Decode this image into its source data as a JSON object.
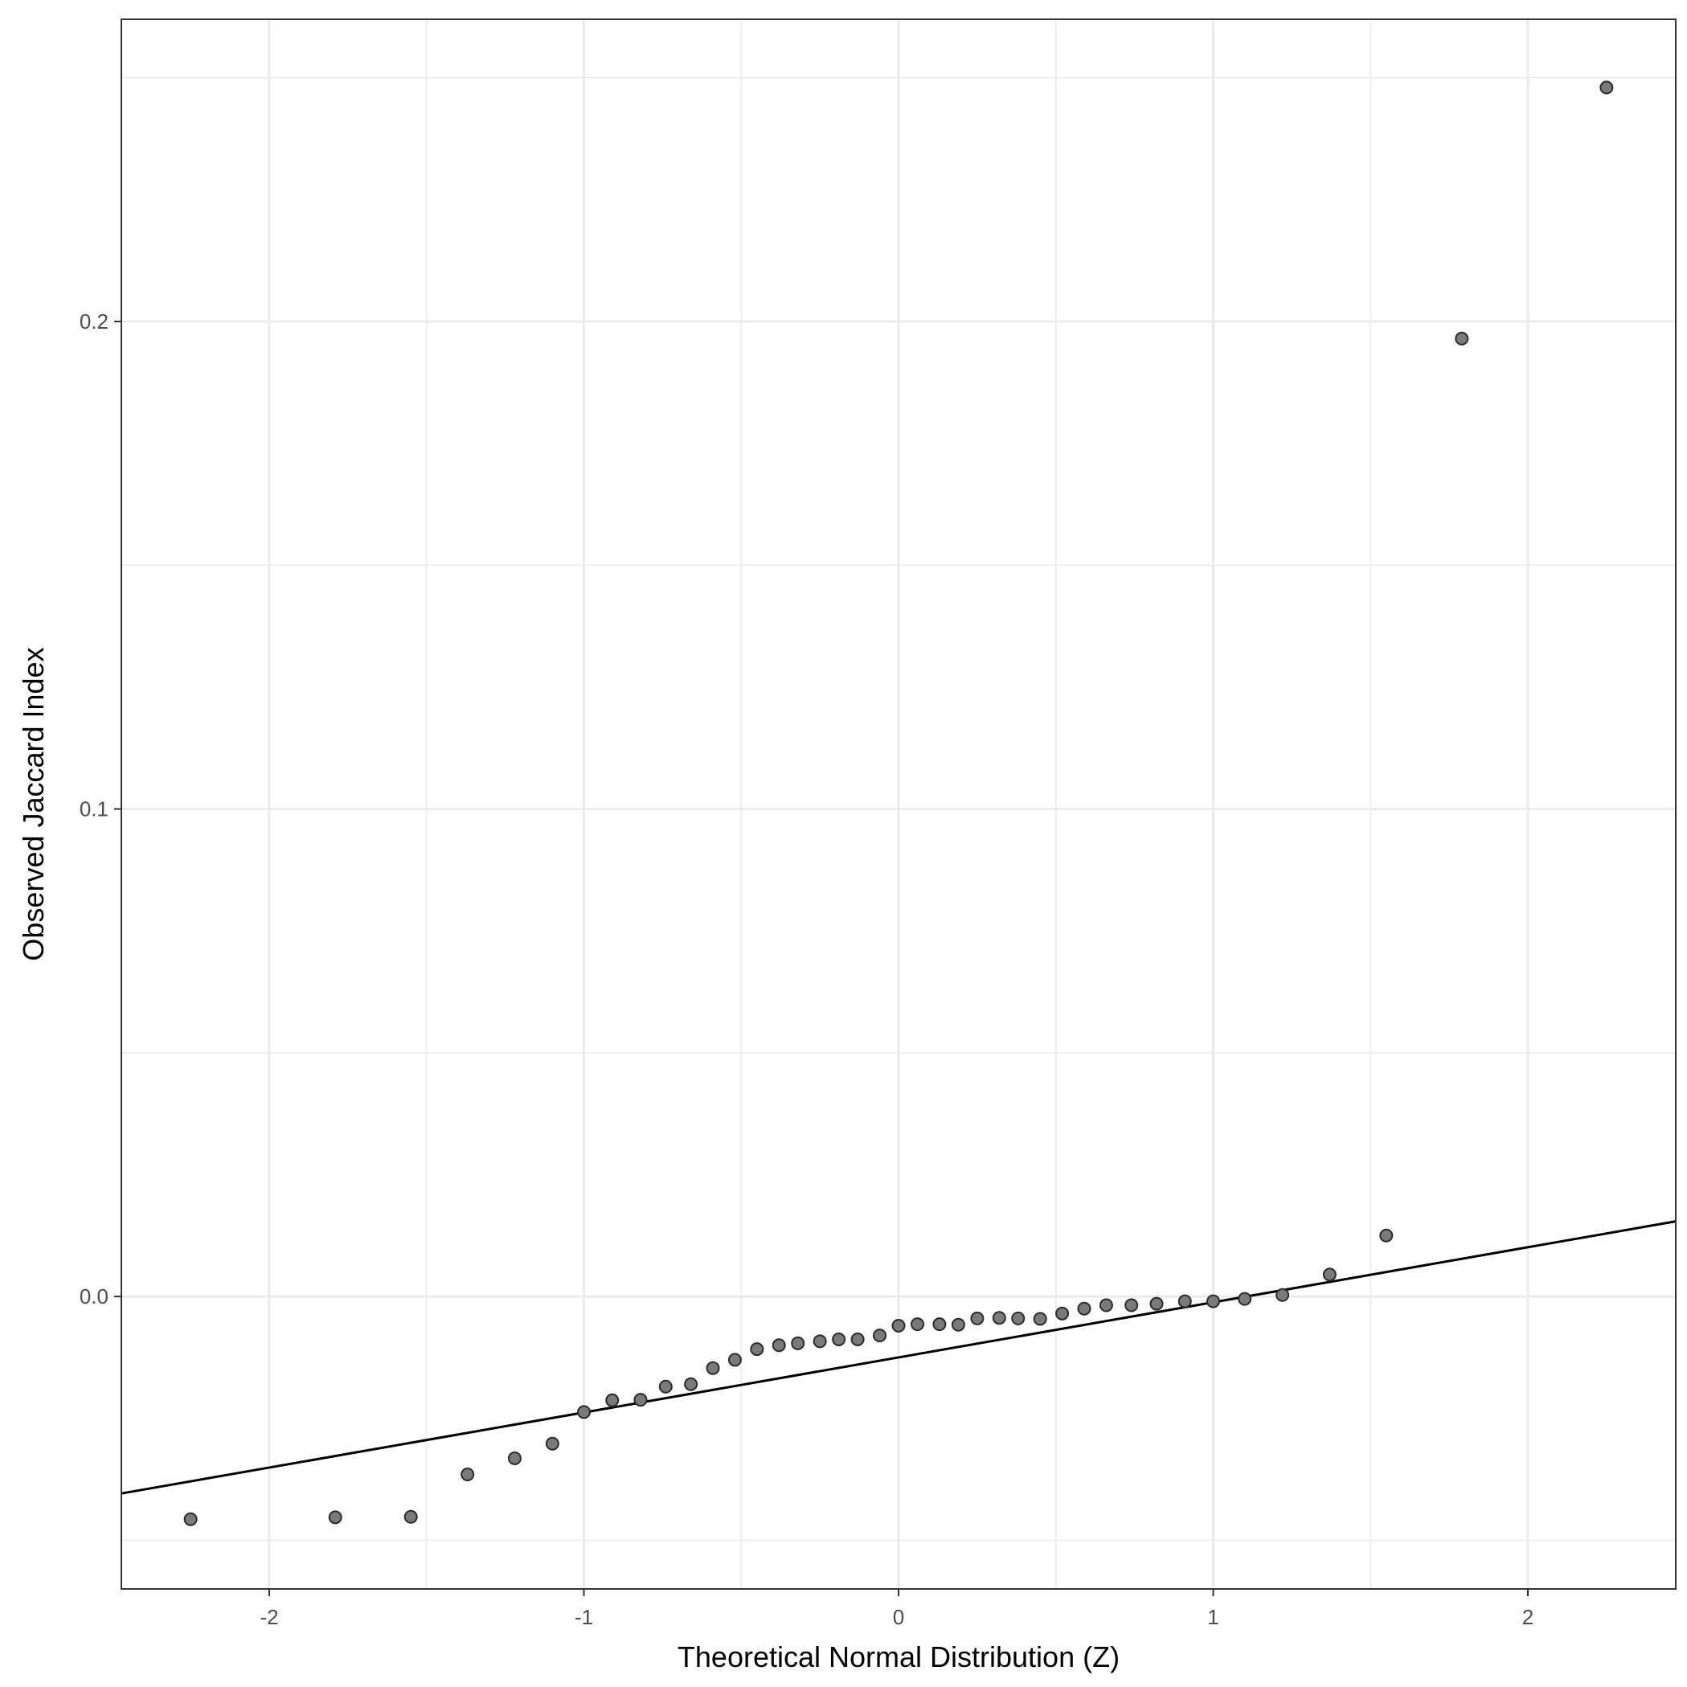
{
  "chart_data": {
    "type": "scatter",
    "title": "",
    "xlabel": "Theoretical Normal Distribution (Z)",
    "ylabel": "Observed Jaccard Index",
    "xlim": [
      -2.47,
      2.47
    ],
    "ylim": [
      -0.06,
      0.262
    ],
    "x_ticks": [
      -2,
      -1,
      0,
      1,
      2
    ],
    "x_tick_labels": [
      "-2",
      "-1",
      "0",
      "1",
      "2"
    ],
    "y_ticks": [
      0.0,
      0.1,
      0.2
    ],
    "y_tick_labels": [
      "0.0",
      "0.1",
      "0.2"
    ],
    "grid": true,
    "reference_line": {
      "intercept": -0.0125,
      "slope": 0.0113
    },
    "points": {
      "x": [
        -2.25,
        -1.79,
        -1.55,
        -1.37,
        -1.22,
        -1.1,
        -1.0,
        -0.91,
        -0.82,
        -0.74,
        -0.66,
        -0.59,
        -0.52,
        -0.45,
        -0.38,
        -0.32,
        -0.25,
        -0.19,
        -0.13,
        -0.06,
        0.0,
        0.06,
        0.13,
        0.19,
        0.25,
        0.32,
        0.38,
        0.45,
        0.52,
        0.59,
        0.66,
        0.74,
        0.82,
        0.91,
        1.0,
        1.1,
        1.22,
        1.37,
        1.55,
        1.79,
        2.25
      ],
      "y": [
        -0.0457,
        -0.0453,
        -0.0452,
        -0.0365,
        -0.0332,
        -0.0302,
        -0.0237,
        -0.0213,
        -0.0212,
        -0.0185,
        -0.018,
        -0.0147,
        -0.013,
        -0.0108,
        -0.01,
        -0.0096,
        -0.0092,
        -0.0088,
        -0.0088,
        -0.008,
        -0.006,
        -0.0057,
        -0.0057,
        -0.0058,
        -0.0045,
        -0.0044,
        -0.0045,
        -0.0046,
        -0.0035,
        -0.0025,
        -0.0018,
        -0.0018,
        -0.0015,
        -0.001,
        -0.001,
        -0.0005,
        0.0003,
        0.0045,
        0.0125,
        0.1965,
        0.248
      ]
    }
  }
}
